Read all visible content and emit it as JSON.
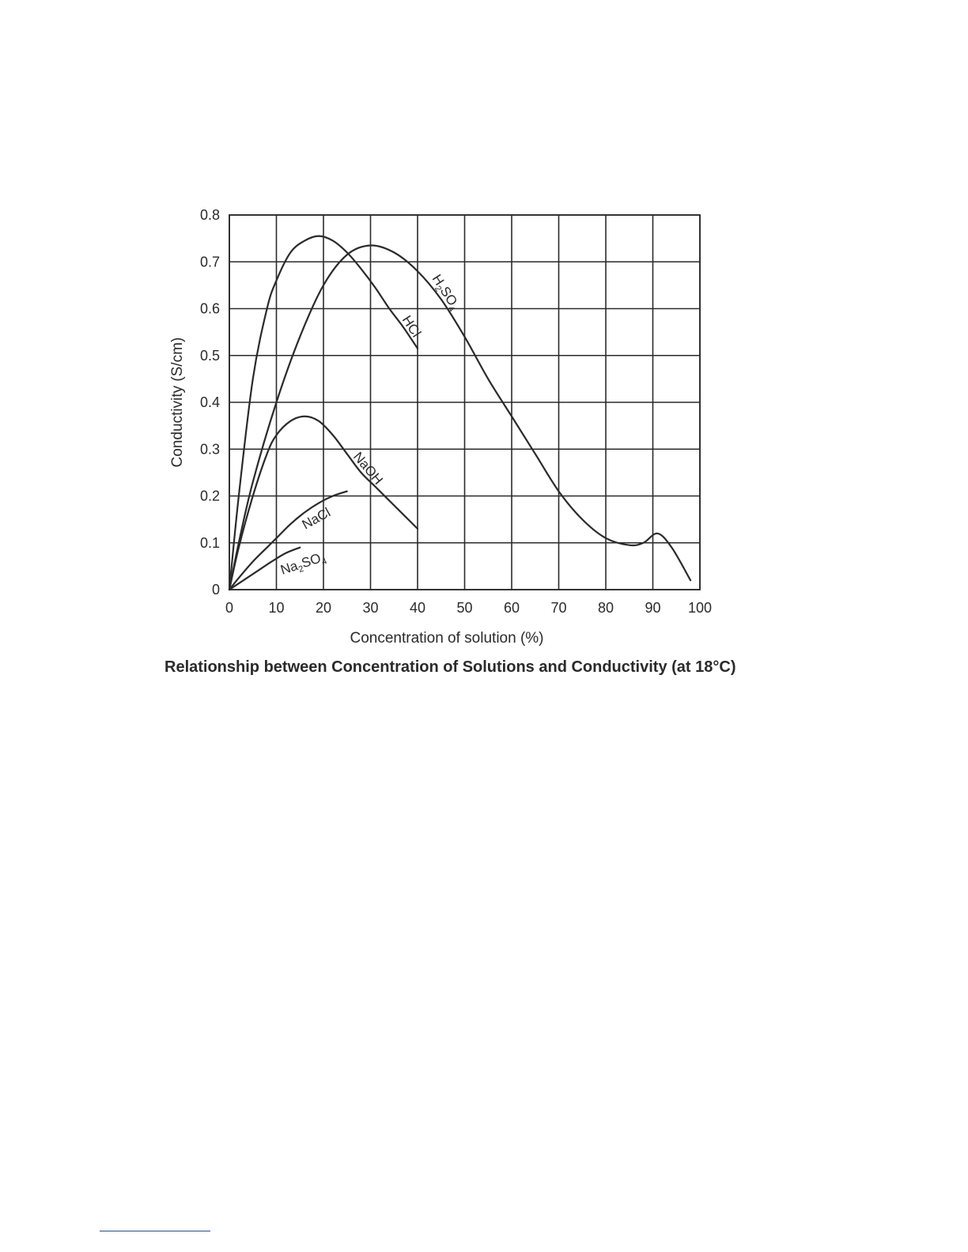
{
  "chart_data": {
    "type": "line",
    "title": "Relationship between Concentration of Solutions and Conductivity (at 18°C)",
    "xlabel": "Concentration of solution (%)",
    "ylabel": "Conductivity (S/cm)",
    "xlim": [
      0,
      100
    ],
    "ylim": [
      0,
      0.8
    ],
    "xticks": [
      0,
      10,
      20,
      30,
      40,
      50,
      60,
      70,
      80,
      90,
      100
    ],
    "yticks": [
      0,
      0.1,
      0.2,
      0.3,
      0.4,
      0.5,
      0.6,
      0.7,
      0.8
    ],
    "grid": true,
    "legend": "inline labels",
    "series": [
      {
        "name": "H2SO4",
        "label": {
          "base": "H",
          "sub1": "2",
          "mid": "SO",
          "sub2": "4"
        },
        "x": [
          0,
          2,
          5,
          10,
          15,
          20,
          25,
          30,
          35,
          40,
          45,
          50,
          55,
          60,
          65,
          70,
          75,
          80,
          85,
          88,
          91,
          94,
          98
        ],
        "y": [
          0,
          0.1,
          0.23,
          0.4,
          0.54,
          0.65,
          0.715,
          0.735,
          0.72,
          0.68,
          0.62,
          0.54,
          0.45,
          0.37,
          0.29,
          0.21,
          0.15,
          0.11,
          0.095,
          0.1,
          0.12,
          0.09,
          0.02
        ]
      },
      {
        "name": "HCl",
        "label": {
          "base": "HCl"
        },
        "x": [
          0,
          2,
          5,
          8,
          10,
          13,
          16,
          19,
          22,
          25,
          28,
          31,
          34,
          37,
          40
        ],
        "y": [
          0,
          0.2,
          0.45,
          0.6,
          0.66,
          0.72,
          0.745,
          0.755,
          0.745,
          0.72,
          0.685,
          0.645,
          0.6,
          0.56,
          0.515
        ]
      },
      {
        "name": "NaOH",
        "label": {
          "base": "NaOH"
        },
        "x": [
          0,
          2,
          5,
          8,
          10,
          13,
          16,
          19,
          22,
          25,
          28,
          31,
          34,
          37,
          40
        ],
        "y": [
          0,
          0.09,
          0.2,
          0.29,
          0.33,
          0.36,
          0.37,
          0.36,
          0.33,
          0.29,
          0.25,
          0.22,
          0.19,
          0.16,
          0.13
        ]
      },
      {
        "name": "NaCl",
        "label": {
          "base": "NaCl"
        },
        "x": [
          0,
          2,
          5,
          8,
          10,
          13,
          16,
          19,
          22,
          25
        ],
        "y": [
          0,
          0.025,
          0.06,
          0.09,
          0.11,
          0.14,
          0.165,
          0.185,
          0.2,
          0.21
        ]
      },
      {
        "name": "Na2SO4",
        "label": {
          "base": "Na",
          "sub1": "2",
          "mid": "SO",
          "sub2": "4"
        },
        "x": [
          0,
          3,
          6,
          9,
          12,
          15
        ],
        "y": [
          0,
          0.02,
          0.04,
          0.06,
          0.078,
          0.09
        ]
      }
    ]
  }
}
